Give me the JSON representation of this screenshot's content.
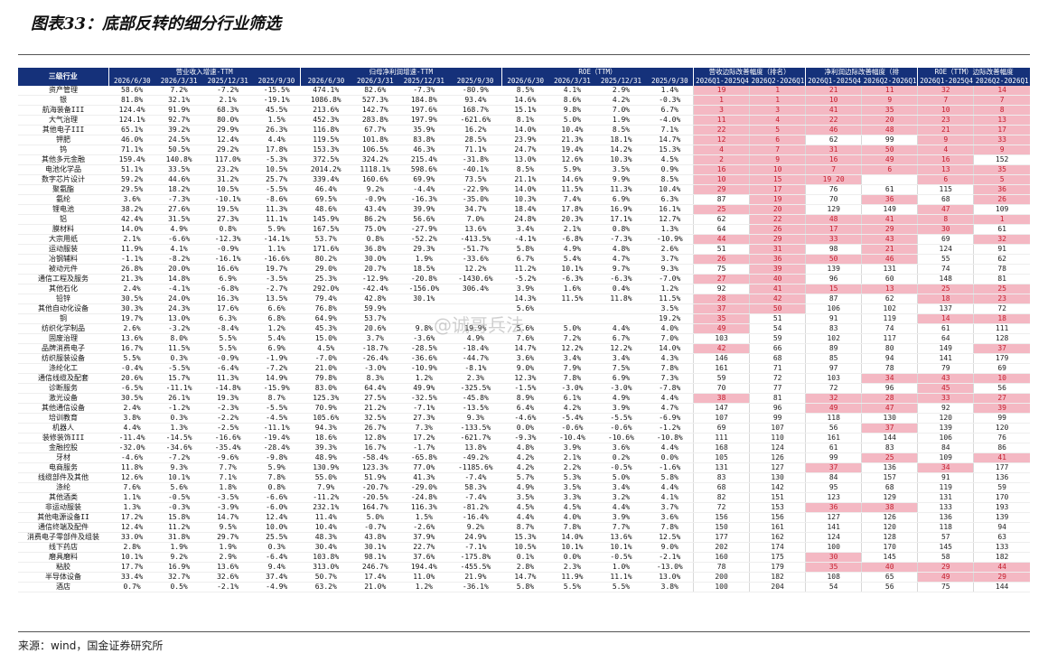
{
  "title": "图表33：底部反转的细分行业筛选",
  "source": "来源：wind，国金证券研究所",
  "watermark": "@诚哥兵法",
  "colors": {
    "header_bg": "#15317a",
    "highlight_bg": "#f4b8c3",
    "highlight_text": "#c4202f"
  },
  "header": {
    "corner": "三级行业",
    "groups": [
      "营业收入增速-TTM",
      "归母净利润增速-TTM",
      "ROE（TTM）",
      "营收边际改善幅度（排名）",
      "净利润边际改善幅度（排",
      "ROE（TTM）边际改善幅度"
    ],
    "sub": [
      "2026/6/30",
      "2026/3/31",
      "2025/12/31",
      "2025/9/30",
      "2026/6/30",
      "2026/3/31",
      "2025/12/31",
      "2025/9/30",
      "2026/6/30",
      "2026/3/31",
      "2025/12/31",
      "2025/9/30",
      "2026Q1-2025Q4",
      "2026Q2-2026Q1",
      "2026Q1-2025Q4",
      "2026Q2-2026Q1",
      "2026Q1-2025Q4",
      "2026Q2-2026Q1"
    ]
  },
  "rows": [
    [
      "资产管理",
      "58.6%",
      "7.2%",
      "-7.2%",
      "-15.5%",
      "474.1%",
      "82.6%",
      "-7.3%",
      "-80.9%",
      "8.5%",
      "4.1%",
      "2.9%",
      "1.4%",
      "19",
      "1",
      "21",
      "11",
      "32",
      "14",
      "111111"
    ],
    [
      "银",
      "81.8%",
      "32.1%",
      "2.1%",
      "-19.1%",
      "1086.8%",
      "527.3%",
      "184.8%",
      "93.4%",
      "14.6%",
      "8.6%",
      "4.2%",
      "-0.3%",
      "1",
      "1",
      "10",
      "9",
      "7",
      "7",
      "111111"
    ],
    [
      "航海装备III",
      "124.4%",
      "91.9%",
      "68.3%",
      "45.5%",
      "213.6%",
      "142.7%",
      "197.6%",
      "168.7%",
      "15.1%",
      "9.8%",
      "7.0%",
      "6.7%",
      "3",
      "3",
      "41",
      "35",
      "10",
      "8",
      "111111"
    ],
    [
      "大气治理",
      "124.1%",
      "92.7%",
      "80.0%",
      "1.5%",
      "452.3%",
      "283.8%",
      "197.9%",
      "-621.6%",
      "8.1%",
      "5.0%",
      "1.9%",
      "-4.0%",
      "11",
      "4",
      "22",
      "20",
      "23",
      "13",
      "111111"
    ],
    [
      "其他电子III",
      "65.1%",
      "39.2%",
      "29.9%",
      "26.3%",
      "116.8%",
      "67.7%",
      "35.9%",
      "16.2%",
      "14.0%",
      "10.4%",
      "8.5%",
      "7.1%",
      "22",
      "5",
      "46",
      "48",
      "21",
      "17",
      "111111"
    ],
    [
      "钾肥",
      "46.0%",
      "24.5%",
      "12.4%",
      "4.4%",
      "119.5%",
      "101.8%",
      "83.8%",
      "28.5%",
      "23.9%",
      "21.3%",
      "18.1%",
      "14.7%",
      "12",
      "6",
      "62",
      "99",
      "9",
      "33",
      "110011"
    ],
    [
      "钨",
      "71.1%",
      "50.5%",
      "29.2%",
      "17.8%",
      "153.3%",
      "106.5%",
      "46.3%",
      "71.1%",
      "24.7%",
      "19.4%",
      "14.2%",
      "15.3%",
      "4",
      "7",
      "31",
      "50",
      "4",
      "9",
      "111111"
    ],
    [
      "其他多元金融",
      "159.4%",
      "140.8%",
      "117.0%",
      "-5.3%",
      "372.5%",
      "324.2%",
      "215.4%",
      "-31.8%",
      "13.0%",
      "12.6%",
      "10.3%",
      "4.5%",
      "2",
      "9",
      "16",
      "49",
      "16",
      "152",
      "111110"
    ],
    [
      "电池化学品",
      "51.1%",
      "33.5%",
      "23.2%",
      "10.5%",
      "2014.2%",
      "1118.1%",
      "598.6%",
      "-40.1%",
      "8.5%",
      "5.9%",
      "3.5%",
      "0.9%",
      "16",
      "10",
      "7",
      "6",
      "13",
      "35",
      "111111"
    ],
    [
      "数字芯片设计",
      "59.2%",
      "44.6%",
      "31.2%",
      "25.7%",
      "339.4%",
      "160.6%",
      "69.9%",
      "73.5%",
      "21.1%",
      "14.6%",
      "9.9%",
      "8.5%",
      "10",
      "15",
      "19 20",
      "",
      "6",
      "5",
      "111011"
    ],
    [
      "聚氨酯",
      "29.5%",
      "18.2%",
      "10.5%",
      "-5.5%",
      "46.4%",
      "9.2%",
      "-4.4%",
      "-22.9%",
      "14.0%",
      "11.5%",
      "11.3%",
      "10.4%",
      "29",
      "17",
      "76",
      "61",
      "115",
      "36",
      "110001"
    ],
    [
      "氨纶",
      "3.6%",
      "-7.3%",
      "-10.1%",
      "-8.6%",
      "69.5%",
      "-0.9%",
      "-16.3%",
      "-35.0%",
      "10.3%",
      "7.4%",
      "6.9%",
      "6.3%",
      "87",
      "19",
      "70",
      "36",
      "68",
      "26",
      "010101"
    ],
    [
      "锂电池",
      "38.2%",
      "27.6%",
      "19.5%",
      "11.3%",
      "48.6%",
      "43.4%",
      "39.9%",
      "34.7%",
      "18.4%",
      "17.8%",
      "16.9%",
      "16.1%",
      "25",
      "20",
      "129",
      "149",
      "47",
      "109",
      "110010"
    ],
    [
      "铝",
      "42.4%",
      "31.5%",
      "27.3%",
      "11.1%",
      "145.9%",
      "86.2%",
      "56.6%",
      "7.0%",
      "24.8%",
      "20.3%",
      "17.1%",
      "12.7%",
      "62",
      "22",
      "48",
      "41",
      "8",
      "1",
      "011111"
    ],
    [
      "膜材料",
      "14.0%",
      "4.9%",
      "0.8%",
      "5.9%",
      "167.5%",
      "75.0%",
      "-27.9%",
      "13.6%",
      "3.4%",
      "2.1%",
      "0.8%",
      "1.3%",
      "64",
      "26",
      "17",
      "29",
      "30",
      "61",
      "011110"
    ],
    [
      "大宗用纸",
      "2.1%",
      "-6.6%",
      "-12.3%",
      "-14.1%",
      "53.7%",
      "0.8%",
      "-52.2%",
      "-413.5%",
      "-4.1%",
      "-6.8%",
      "-7.3%",
      "-10.9%",
      "44",
      "29",
      "33",
      "43",
      "69",
      "32",
      "111101"
    ],
    [
      "运动服装",
      "11.9%",
      "4.1%",
      "-0.9%",
      "1.1%",
      "171.6%",
      "36.8%",
      "29.3%",
      "-51.7%",
      "5.8%",
      "4.9%",
      "4.8%",
      "2.6%",
      "51",
      "31",
      "98",
      "21",
      "124",
      "91",
      "010100"
    ],
    [
      "冶钢辅料",
      "-1.1%",
      "-8.2%",
      "-16.1%",
      "-16.6%",
      "80.2%",
      "30.0%",
      "1.9%",
      "-33.6%",
      "6.7%",
      "5.4%",
      "4.7%",
      "3.7%",
      "26",
      "36",
      "50",
      "46",
      "55",
      "62",
      "111100"
    ],
    [
      "被动元件",
      "26.8%",
      "20.0%",
      "16.6%",
      "19.7%",
      "29.0%",
      "20.7%",
      "18.5%",
      "12.2%",
      "11.2%",
      "10.1%",
      "9.7%",
      "9.3%",
      "75",
      "39",
      "139",
      "131",
      "74",
      "78",
      "010000"
    ],
    [
      "通信工程及服务",
      "21.3%",
      "14.8%",
      "6.9%",
      "-3.5%",
      "25.3%",
      "-12.9%",
      "-20.8%",
      "-1430.6%",
      "-5.2%",
      "-6.3%",
      "-6.3%",
      "-7.0%",
      "27",
      "40",
      "96",
      "60",
      "148",
      "81",
      "110000"
    ],
    [
      "其他石化",
      "2.4%",
      "-4.1%",
      "-6.8%",
      "-2.7%",
      "292.0%",
      "-42.4%",
      "-156.0%",
      "306.4%",
      "3.9%",
      "1.6%",
      "0.4%",
      "1.2%",
      "92",
      "41",
      "15",
      "13",
      "25",
      "25",
      "011111"
    ],
    [
      "铅锌",
      "30.5%",
      "24.0%",
      "16.3%",
      "13.5%",
      "79.4%",
      "42.8%",
      "30.1%",
      "",
      "14.3%",
      "11.5%",
      "11.8%",
      "11.5%",
      "28",
      "42",
      "87",
      "62",
      "18",
      "23",
      "110011"
    ],
    [
      "其他自动化设备",
      "30.3%",
      "24.3%",
      "17.6%",
      "6.6%",
      "76.8%",
      "59.9%",
      "",
      "",
      "5.6%",
      "",
      "",
      "3.5%",
      "37",
      "50",
      "106",
      "102",
      "137",
      "72",
      "110000"
    ],
    [
      "铜",
      "19.7%",
      "13.0%",
      "6.3%",
      "6.8%",
      "64.9%",
      "53.7%",
      "",
      "",
      "",
      "",
      "",
      "19.2%",
      "35",
      "51",
      "91",
      "119",
      "14",
      "18",
      "100011"
    ],
    [
      "纺织化学制品",
      "2.6%",
      "-3.2%",
      "-8.4%",
      "1.2%",
      "45.3%",
      "20.6%",
      "9.8%",
      "19.9%",
      "5.6%",
      "5.0%",
      "4.4%",
      "4.0%",
      "49",
      "54",
      "83",
      "74",
      "61",
      "111",
      "100000"
    ],
    [
      "固废治理",
      "13.6%",
      "8.0%",
      "5.5%",
      "5.4%",
      "15.0%",
      "3.7%",
      "-3.6%",
      "4.9%",
      "7.6%",
      "7.2%",
      "6.7%",
      "7.0%",
      "103",
      "59",
      "102",
      "117",
      "64",
      "128",
      "000000"
    ],
    [
      "品牌消费电子",
      "16.7%",
      "11.5%",
      "5.5%",
      "6.9%",
      "4.5%",
      "-18.7%",
      "-28.5%",
      "-18.4%",
      "14.7%",
      "12.2%",
      "12.2%",
      "14.0%",
      "42",
      "66",
      "89",
      "80",
      "149",
      "37",
      "100001"
    ],
    [
      "纺织服装设备",
      "5.5%",
      "0.3%",
      "-0.9%",
      "-1.9%",
      "-7.0%",
      "-26.4%",
      "-36.6%",
      "-44.7%",
      "3.6%",
      "3.4%",
      "3.4%",
      "4.3%",
      "146",
      "68",
      "85",
      "94",
      "141",
      "179",
      "000000"
    ],
    [
      "涤纶化工",
      "-0.4%",
      "-5.5%",
      "-6.4%",
      "-7.2%",
      "21.0%",
      "-3.0%",
      "-10.9%",
      "-8.1%",
      "9.0%",
      "7.9%",
      "7.5%",
      "7.8%",
      "161",
      "71",
      "97",
      "78",
      "79",
      "69",
      "000000"
    ],
    [
      "通信线缆及配套",
      "20.6%",
      "15.7%",
      "11.3%",
      "14.9%",
      "79.8%",
      "8.3%",
      "1.2%",
      "2.3%",
      "12.3%",
      "7.8%",
      "6.9%",
      "7.3%",
      "59",
      "72",
      "103",
      "34",
      "43",
      "10",
      "000111"
    ],
    [
      "诊断服务",
      "-6.5%",
      "-11.1%",
      "-14.8%",
      "-15.9%",
      "83.0%",
      "64.4%",
      "49.9%",
      "-325.5%",
      "-1.5%",
      "-3.0%",
      "-3.0%",
      "-7.8%",
      "70",
      "77",
      "72",
      "96",
      "45",
      "56",
      "000010"
    ],
    [
      "激光设备",
      "30.5%",
      "26.1%",
      "19.3%",
      "8.7%",
      "125.3%",
      "27.5%",
      "-32.5%",
      "-45.8%",
      "8.9%",
      "6.1%",
      "4.9%",
      "4.4%",
      "38",
      "81",
      "32",
      "28",
      "33",
      "27",
      "101111"
    ],
    [
      "其他通信设备",
      "2.4%",
      "-1.2%",
      "-2.3%",
      "-5.5%",
      "70.9%",
      "21.2%",
      "-7.1%",
      "-13.5%",
      "6.4%",
      "4.2%",
      "3.9%",
      "4.7%",
      "147",
      "96",
      "49",
      "47",
      "92",
      "39",
      "001101"
    ],
    [
      "培训教育",
      "3.8%",
      "0.3%",
      "-2.2%",
      "-4.5%",
      "105.6%",
      "32.5%",
      "27.3%",
      "9.3%",
      "-4.6%",
      "-5.4%",
      "-5.5%",
      "-6.9%",
      "107",
      "99",
      "118",
      "130",
      "120",
      "99",
      "000000"
    ],
    [
      "机器人",
      "4.4%",
      "1.3%",
      "-2.5%",
      "-11.1%",
      "94.3%",
      "26.7%",
      "7.3%",
      "-133.5%",
      "0.0%",
      "-0.6%",
      "-0.6%",
      "-1.2%",
      "69",
      "107",
      "56",
      "37",
      "139",
      "120",
      "000100"
    ],
    [
      "装修装饰III",
      "-11.4%",
      "-14.5%",
      "-16.6%",
      "-19.4%",
      "18.6%",
      "12.8%",
      "17.2%",
      "-621.7%",
      "-9.3%",
      "-10.4%",
      "-10.6%",
      "-10.8%",
      "111",
      "110",
      "161",
      "144",
      "106",
      "76",
      "000000"
    ],
    [
      "金融控股",
      "-32.0%",
      "-34.6%",
      "-35.4%",
      "-28.4%",
      "39.3%",
      "16.7%",
      "-1.7%",
      "13.8%",
      "4.8%",
      "3.9%",
      "3.6%",
      "4.4%",
      "168",
      "124",
      "61",
      "83",
      "84",
      "86",
      "000000"
    ],
    [
      "牙材",
      "-4.6%",
      "-7.2%",
      "-9.6%",
      "-9.8%",
      "48.9%",
      "-58.4%",
      "-65.8%",
      "-49.2%",
      "4.2%",
      "2.1%",
      "0.2%",
      "0.0%",
      "105",
      "126",
      "99",
      "25",
      "109",
      "41",
      "000101"
    ],
    [
      "电商服务",
      "11.8%",
      "9.3%",
      "7.7%",
      "5.9%",
      "130.9%",
      "123.3%",
      "77.0%",
      "-1185.6%",
      "4.2%",
      "2.2%",
      "-0.5%",
      "-1.6%",
      "131",
      "127",
      "37",
      "136",
      "34",
      "177",
      "001010"
    ],
    [
      "线缆部件及其他",
      "12.6%",
      "10.1%",
      "7.1%",
      "7.8%",
      "55.0%",
      "51.9%",
      "41.3%",
      "-7.4%",
      "5.7%",
      "5.3%",
      "5.0%",
      "5.8%",
      "83",
      "130",
      "84",
      "157",
      "91",
      "136",
      "000000"
    ],
    [
      "涤纶",
      "7.6%",
      "5.6%",
      "1.8%",
      "0.8%",
      "7.9%",
      "-20.7%",
      "-29.0%",
      "58.3%",
      "4.9%",
      "3.5%",
      "3.4%",
      "4.4%",
      "68",
      "142",
      "95",
      "68",
      "119",
      "59",
      "000000"
    ],
    [
      "其他酒类",
      "1.1%",
      "-0.5%",
      "-3.5%",
      "-6.6%",
      "-11.2%",
      "-20.5%",
      "-24.8%",
      "-7.4%",
      "3.5%",
      "3.3%",
      "3.2%",
      "4.1%",
      "82",
      "151",
      "123",
      "129",
      "131",
      "170",
      "000000"
    ],
    [
      "非运动服装",
      "1.3%",
      "-0.3%",
      "-3.9%",
      "-6.0%",
      "232.1%",
      "164.7%",
      "116.3%",
      "-81.2%",
      "4.5%",
      "4.5%",
      "4.4%",
      "3.7%",
      "72",
      "153",
      "36",
      "38",
      "133",
      "193",
      "001100"
    ],
    [
      "其他电源设备II",
      "17.2%",
      "15.8%",
      "14.7%",
      "12.4%",
      "11.4%",
      "5.0%",
      "1.5%",
      "-16.4%",
      "4.4%",
      "4.0%",
      "3.9%",
      "3.6%",
      "156",
      "156",
      "127",
      "126",
      "136",
      "139",
      "000000"
    ],
    [
      "通信终端及配件",
      "12.4%",
      "11.2%",
      "9.5%",
      "10.0%",
      "10.4%",
      "-0.7%",
      "-2.6%",
      "9.2%",
      "8.7%",
      "7.8%",
      "7.7%",
      "7.8%",
      "150",
      "161",
      "141",
      "120",
      "118",
      "94",
      "000000"
    ],
    [
      "消费电子零部件及组装",
      "33.0%",
      "31.8%",
      "29.7%",
      "25.5%",
      "48.3%",
      "43.8%",
      "37.9%",
      "24.9%",
      "15.3%",
      "14.0%",
      "13.6%",
      "12.5%",
      "177",
      "162",
      "124",
      "128",
      "57",
      "63",
      "000000"
    ],
    [
      "线下药店",
      "2.8%",
      "1.9%",
      "1.9%",
      "0.3%",
      "30.4%",
      "30.1%",
      "22.7%",
      "-7.1%",
      "10.5%",
      "10.1%",
      "10.1%",
      "9.0%",
      "202",
      "174",
      "100",
      "170",
      "145",
      "133",
      "000000"
    ],
    [
      "磨具磨料",
      "10.1%",
      "9.2%",
      "2.9%",
      "-6.4%",
      "103.8%",
      "98.1%",
      "37.6%",
      "-175.8%",
      "0.1%",
      "0.0%",
      "-0.5%",
      "-2.1%",
      "160",
      "175",
      "30",
      "145",
      "58",
      "182",
      "001000"
    ],
    [
      "粘胶",
      "17.7%",
      "16.9%",
      "13.6%",
      "9.4%",
      "313.0%",
      "246.7%",
      "194.4%",
      "-455.5%",
      "2.8%",
      "2.3%",
      "1.0%",
      "-13.0%",
      "78",
      "179",
      "35",
      "40",
      "29",
      "44",
      "001111"
    ],
    [
      "半导体设备",
      "33.4%",
      "32.7%",
      "32.6%",
      "37.4%",
      "50.7%",
      "17.4%",
      "11.0%",
      "21.9%",
      "14.7%",
      "11.9%",
      "11.1%",
      "13.0%",
      "200",
      "182",
      "108",
      "65",
      "49",
      "29",
      "000011"
    ],
    [
      "酒店",
      "0.7%",
      "0.5%",
      "-2.1%",
      "-4.9%",
      "63.2%",
      "21.0%",
      "1.2%",
      "-36.1%",
      "5.8%",
      "5.5%",
      "5.5%",
      "3.8%",
      "100",
      "204",
      "54",
      "56",
      "75",
      "144",
      "000000"
    ]
  ]
}
